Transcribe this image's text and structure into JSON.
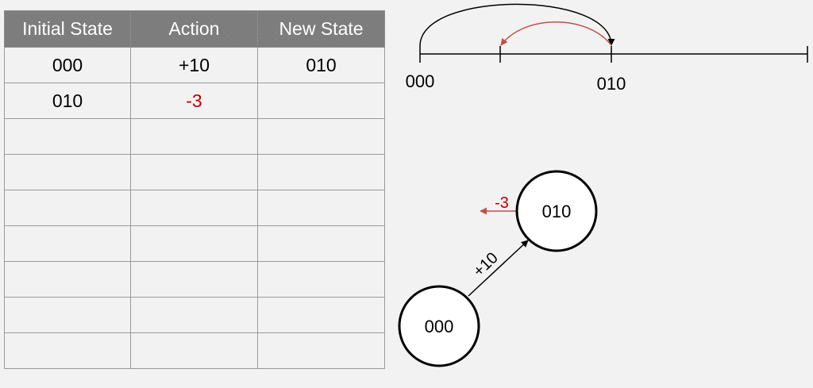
{
  "table": {
    "headers": [
      "Initial State",
      "Action",
      "New State"
    ],
    "rows": [
      [
        "000",
        "+10",
        "010"
      ],
      [
        "010",
        "-3",
        ""
      ],
      [
        "",
        "",
        ""
      ],
      [
        "",
        "",
        ""
      ],
      [
        "",
        "",
        ""
      ],
      [
        "",
        "",
        ""
      ],
      [
        "",
        "",
        ""
      ],
      [
        "",
        "",
        ""
      ],
      [
        "",
        "",
        ""
      ]
    ]
  },
  "number_line": {
    "labels": {
      "start": "000",
      "mid": "010"
    }
  },
  "graph": {
    "node_start": "000",
    "node_next": "010",
    "edge_label": "+10",
    "back_label": "-3"
  },
  "colors": {
    "header_bg": "#7a7a7a",
    "negative": "#c00000",
    "back_arrow": "#c0504d",
    "line": "#000000"
  }
}
